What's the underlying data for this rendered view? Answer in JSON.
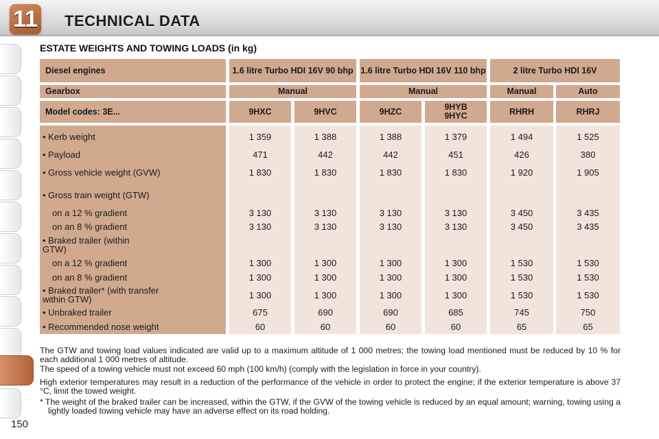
{
  "chapter_number": "11",
  "page_title": "TECHNICAL DATA",
  "section_title": "ESTATE WEIGHTS AND TOWING LOADS (in kg)",
  "header": {
    "row1_label": "Diesel engines",
    "engines": [
      "1.6 litre Turbo HDI 16V 90 bhp",
      "1.6 litre Turbo HDI 16V 110 bhp",
      "2 litre Turbo HDI 16V"
    ],
    "row2_label": "Gearbox",
    "gearboxes": [
      "Manual",
      "Manual",
      "Manual",
      "Auto"
    ],
    "row3_label": "Model codes: 3E...",
    "model_codes": [
      "9HXC",
      "9HVC",
      "9HZC",
      "9HYB 9HYC",
      "RHRH",
      "RHRJ"
    ]
  },
  "rows": [
    {
      "label": "• Kerb weight",
      "values": [
        "1 359",
        "1 388",
        "1 388",
        "1 379",
        "1 494",
        "1 525"
      ]
    },
    {
      "label": "• Payload",
      "values": [
        "471",
        "442",
        "442",
        "451",
        "426",
        "380"
      ]
    },
    {
      "label": "• Gross vehicle weight (GVW)",
      "values": [
        "1 830",
        "1 830",
        "1 830",
        "1 830",
        "1 920",
        "1 905"
      ]
    },
    {
      "label": "• Gross train weight (GTW)",
      "values": [
        "",
        "",
        "",
        "",
        "",
        ""
      ]
    },
    {
      "label": "on a 12 % gradient",
      "values": [
        "3 130",
        "3 130",
        "3 130",
        "3 130",
        "3 450",
        "3 435"
      ]
    },
    {
      "label": "on an 8 % gradient",
      "values": [
        "3 130",
        "3 130",
        "3 130",
        "3 130",
        "3 450",
        "3 435"
      ]
    },
    {
      "label": "• Braked trailer (within GTW)",
      "values": [
        "",
        "",
        "",
        "",
        "",
        ""
      ]
    },
    {
      "label": "on a 12 % gradient",
      "values": [
        "1 300",
        "1 300",
        "1 300",
        "1 300",
        "1 530",
        "1 530"
      ]
    },
    {
      "label": "on an 8 % gradient",
      "values": [
        "1 300",
        "1 300",
        "1 300",
        "1 300",
        "1 530",
        "1 530"
      ]
    },
    {
      "label": "• Braked trailer* (with transfer within GTW)",
      "values": [
        "1 300",
        "1 300",
        "1 300",
        "1 300",
        "1 530",
        "1 530"
      ]
    },
    {
      "label": "• Unbraked trailer",
      "values": [
        "675",
        "690",
        "690",
        "685",
        "745",
        "750"
      ]
    },
    {
      "label": "• Recommended nose weight",
      "values": [
        "60",
        "60",
        "60",
        "60",
        "65",
        "65"
      ]
    }
  ],
  "notes": [
    "The GTW and towing load values indicated are valid up to a maximum altitude of 1 000 metres; the towing load mentioned must be reduced by 10 % for each additional 1 000 metres of altitude.",
    "The speed of a towing vehicle must not exceed 60 mph (100 km/h) (comply with the legislation in force in your country).",
    "High exterior temperatures may result in a reduction of the performance of the vehicle in order to protect the engine; if the exterior temperature is above 37 °C, limit the towed weight.",
    "* The weight of the braked trailer can be increased, within the GTW, if the GVW of the towing vehicle is reduced by an equal amount; warning, towing using a lightly loaded towing vehicle may have an adverse effect on its road holding."
  ],
  "page_number": "150",
  "colors": {
    "accent": "#b06237",
    "header_cell": "#d1a98f",
    "data_cell": "#f2e4da"
  }
}
